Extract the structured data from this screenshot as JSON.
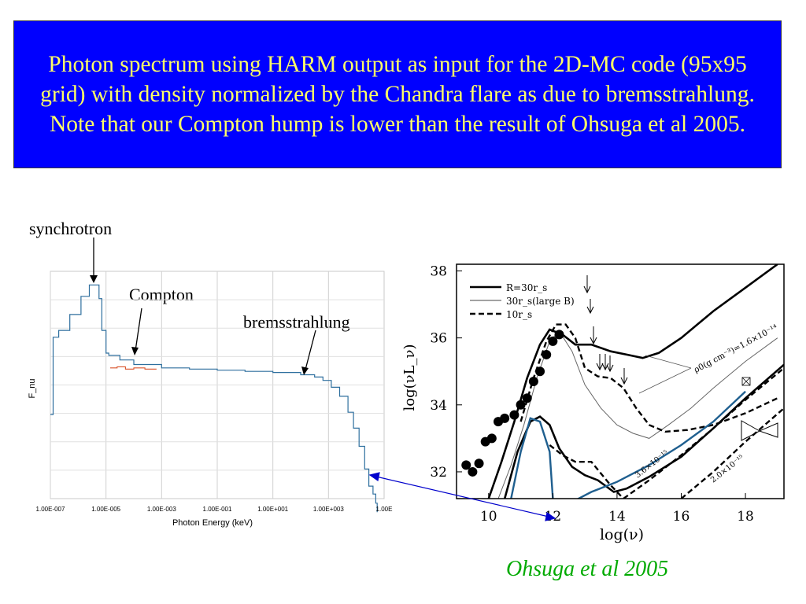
{
  "title": "Photon spectrum using HARM output as input for the 2D-MC code (95x95 grid) with density normalized by the Chandra flare as due to bremsstrahlung.  Note that our Compton hump is lower than the result of Ohsuga et al 2005.",
  "annotations": {
    "synchrotron": "synchrotron",
    "compton": "Compton",
    "bremsstrahlung": "bremsstrahlung"
  },
  "citation": "Ohsuga et al 2005",
  "colors": {
    "title_bg": "#0000ff",
    "title_text": "#ffff66",
    "citation": "#00aa00",
    "left_spectrum": "#2e6f9e",
    "left_red": "#d9532b",
    "connector": "#0000cc",
    "right_blue": "#1f5f8f"
  },
  "chart_data": [
    {
      "type": "line",
      "title": "",
      "xlabel": "Photon Energy (keV)",
      "ylabel": "F_nu",
      "x_scale": "log",
      "xlim": [
        1e-07,
        100000.0
      ],
      "x_ticks": [
        "1.00E-007",
        "1.00E-005",
        "1.00E-003",
        "1.00E-001",
        "1.00E+001",
        "1.00E+003",
        "1.00E"
      ],
      "grid": true,
      "series": [
        {
          "color": "#2e6f9e",
          "x_log10": [
            -7,
            -6.9,
            -6.7,
            -6.3,
            -5.9,
            -5.6,
            -5.4,
            -5.25,
            -5.15,
            -5.0,
            -4.9,
            -4.5,
            -4.0,
            -3.0,
            -2.0,
            -1.0,
            0,
            1.0,
            2.0,
            2.5,
            2.8,
            3.1,
            3.4,
            3.7,
            3.9,
            4.1,
            4.3,
            4.45,
            4.6,
            4.7,
            4.75
          ],
          "y_rel": [
            0.37,
            0.71,
            0.74,
            0.81,
            0.89,
            0.94,
            0.94,
            0.88,
            0.74,
            0.64,
            0.63,
            0.61,
            0.59,
            0.575,
            0.57,
            0.565,
            0.56,
            0.555,
            0.545,
            0.535,
            0.52,
            0.49,
            0.45,
            0.38,
            0.31,
            0.23,
            0.13,
            0.055,
            0.02,
            -0.02,
            -0.06
          ]
        },
        {
          "color": "#d9532b",
          "x_log10": [
            -4.85,
            -4.6,
            -4.3,
            -4.0,
            -3.6,
            -3.2
          ],
          "y_rel": [
            0.575,
            0.58,
            0.57,
            0.575,
            0.57,
            0.572
          ]
        }
      ]
    },
    {
      "type": "line",
      "title": "",
      "xlabel": "log(ν)",
      "ylabel": "log(νL_ν)",
      "xlim": [
        9,
        19.2
      ],
      "ylim": [
        31.2,
        38.2
      ],
      "x_ticks": [
        "10",
        "12",
        "14",
        "16",
        "18"
      ],
      "y_ticks": [
        "32",
        "34",
        "36",
        "38"
      ],
      "legend": [
        "R=30r_s",
        "30r_s(large B)",
        "10r_s"
      ],
      "legend_position": "top-left",
      "annotations": [
        "ρ0(g cm⁻³)=1.6×10⁻¹⁴",
        "3.6×10⁻¹⁵",
        "2.0×10⁻¹⁵"
      ],
      "series": [
        {
          "name": "R=30r_s",
          "style": "solid-thick",
          "points": [
            [
              10.0,
              31.2
            ],
            [
              10.4,
              32.3
            ],
            [
              10.8,
              33.5
            ],
            [
              11.2,
              34.8
            ],
            [
              11.6,
              35.8
            ],
            [
              11.9,
              36.25
            ],
            [
              12.3,
              36.1
            ],
            [
              12.7,
              35.8
            ],
            [
              13.2,
              35.8
            ],
            [
              13.8,
              35.6
            ],
            [
              14.3,
              35.5
            ],
            [
              14.8,
              35.4
            ],
            [
              15.3,
              35.55
            ],
            [
              16.0,
              36.0
            ],
            [
              17.0,
              36.8
            ],
            [
              18.0,
              37.5
            ],
            [
              19.0,
              38.2
            ]
          ]
        },
        {
          "name": "30r_s(large B)",
          "style": "solid-thin",
          "points": [
            [
              10.3,
              31.2
            ],
            [
              10.7,
              32.2
            ],
            [
              11.1,
              33.4
            ],
            [
              11.5,
              34.8
            ],
            [
              11.9,
              35.9
            ],
            [
              12.2,
              36.2
            ],
            [
              12.6,
              35.6
            ],
            [
              13.0,
              34.6
            ],
            [
              13.5,
              33.9
            ],
            [
              14.0,
              33.4
            ],
            [
              14.5,
              33.15
            ],
            [
              15.0,
              33.0
            ],
            [
              15.6,
              33.4
            ],
            [
              16.3,
              33.9
            ],
            [
              17.0,
              34.5
            ],
            [
              18.0,
              35.3
            ],
            [
              19.0,
              36.0
            ]
          ]
        },
        {
          "name": "10r_s",
          "style": "dashed-thick",
          "points": [
            [
              11.0,
              33.5
            ],
            [
              11.4,
              34.8
            ],
            [
              11.8,
              35.9
            ],
            [
              12.1,
              36.4
            ],
            [
              12.4,
              36.4
            ],
            [
              12.7,
              36.0
            ],
            [
              13.0,
              35.1
            ],
            [
              13.4,
              34.85
            ],
            [
              13.8,
              34.8
            ],
            [
              14.2,
              34.5
            ],
            [
              14.6,
              33.9
            ],
            [
              15.0,
              33.4
            ],
            [
              15.5,
              33.2
            ],
            [
              16.2,
              33.25
            ],
            [
              17.0,
              33.4
            ],
            [
              18.0,
              33.75
            ],
            [
              19.0,
              34.2
            ]
          ]
        },
        {
          "name": "solid-lower",
          "style": "solid-thick",
          "points": [
            [
              10.5,
              31.2
            ],
            [
              10.9,
              32.6
            ],
            [
              11.3,
              33.5
            ],
            [
              11.6,
              33.65
            ],
            [
              11.9,
              33.4
            ],
            [
              12.2,
              32.7
            ],
            [
              12.6,
              32.15
            ],
            [
              13.0,
              31.9
            ],
            [
              13.4,
              31.75
            ],
            [
              13.9,
              31.4
            ],
            [
              14.3,
              31.5
            ],
            [
              15.0,
              31.85
            ],
            [
              16.0,
              32.45
            ],
            [
              17.0,
              33.3
            ],
            [
              18.0,
              34.2
            ],
            [
              19.2,
              35.2
            ]
          ]
        },
        {
          "name": "dashed-lower",
          "style": "dashed-thick",
          "points": [
            [
              11.9,
              32.8
            ],
            [
              12.3,
              32.5
            ],
            [
              12.7,
              32.3
            ],
            [
              13.2,
              32.3
            ],
            [
              13.8,
              31.6
            ],
            [
              14.2,
              31.2
            ]
          ]
        },
        {
          "name": "dashed-rising",
          "style": "dashed-thick",
          "points": [
            [
              14.2,
              31.2
            ],
            [
              15.0,
              31.75
            ],
            [
              16.0,
              32.5
            ],
            [
              17.0,
              33.3
            ],
            [
              18.0,
              34.15
            ],
            [
              19.2,
              35.1
            ]
          ]
        },
        {
          "name": "dashed-lowest",
          "style": "dashed-thick",
          "points": [
            [
              16.0,
              31.2
            ],
            [
              17.0,
              32.0
            ],
            [
              18.0,
              32.9
            ],
            [
              19.2,
              33.9
            ]
          ]
        },
        {
          "name": "blue",
          "style": "solid-blue",
          "points": [
            [
              10.7,
              31.2
            ],
            [
              11.0,
              32.6
            ],
            [
              11.3,
              33.6
            ],
            [
              11.6,
              33.5
            ],
            [
              11.9,
              32.6
            ],
            [
              12.0,
              31.2
            ],
            [
              12.1,
              30.9
            ],
            [
              12.6,
              31.1
            ],
            [
              13.2,
              31.4
            ],
            [
              14.0,
              31.7
            ],
            [
              15.0,
              32.2
            ],
            [
              16.0,
              32.8
            ],
            [
              17.0,
              33.5
            ],
            [
              18.0,
              34.4
            ]
          ]
        },
        {
          "name": "observed",
          "style": "markers",
          "points": [
            [
              9.3,
              32.2
            ],
            [
              9.5,
              32.0
            ],
            [
              9.7,
              32.25
            ],
            [
              9.9,
              32.9
            ],
            [
              10.1,
              33.0
            ],
            [
              10.3,
              33.5
            ],
            [
              10.5,
              33.6
            ],
            [
              10.8,
              33.7
            ],
            [
              11.0,
              34.0
            ],
            [
              11.2,
              34.2
            ],
            [
              11.4,
              34.7
            ],
            [
              11.6,
              35.0
            ],
            [
              11.8,
              35.5
            ],
            [
              12.0,
              35.9
            ],
            [
              12.2,
              36.1
            ]
          ]
        }
      ]
    }
  ]
}
